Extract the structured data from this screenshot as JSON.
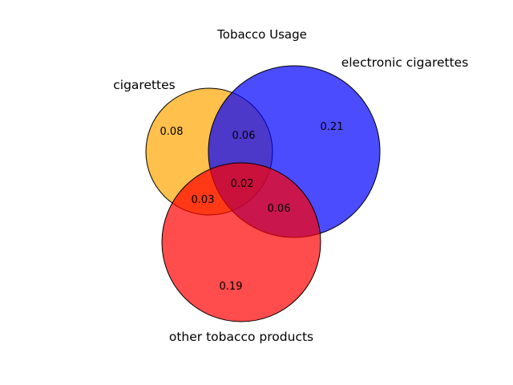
{
  "chart_data": {
    "type": "venn",
    "title": "Tobacco Usage",
    "sets": [
      {
        "name": "cigarettes",
        "color": "#ffa500"
      },
      {
        "name": "electronic cigarettes",
        "color": "#0000ff"
      },
      {
        "name": "other tobacco products",
        "color": "#ff0000"
      }
    ],
    "regions": [
      {
        "sets": [
          "cigarettes"
        ],
        "value": "0.08"
      },
      {
        "sets": [
          "electronic cigarettes"
        ],
        "value": "0.21"
      },
      {
        "sets": [
          "other tobacco products"
        ],
        "value": "0.19"
      },
      {
        "sets": [
          "cigarettes",
          "electronic cigarettes"
        ],
        "value": "0.06"
      },
      {
        "sets": [
          "cigarettes",
          "other tobacco products"
        ],
        "value": "0.03"
      },
      {
        "sets": [
          "electronic cigarettes",
          "other tobacco products"
        ],
        "value": "0.06"
      },
      {
        "sets": [
          "cigarettes",
          "electronic cigarettes",
          "other tobacco products"
        ],
        "value": "0.02"
      }
    ]
  }
}
